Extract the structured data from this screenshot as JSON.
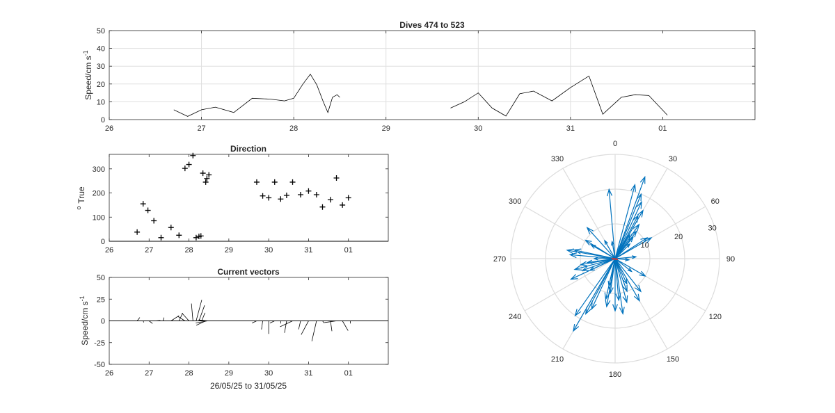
{
  "chart_data": [
    {
      "type": "line",
      "title": "Dives 474 to 523",
      "xlabel": "",
      "ylabel": "Speed/cm s",
      "ylabel_superscript": "-1",
      "xticks": [
        "26",
        "27",
        "28",
        "29",
        "30",
        "31",
        "01"
      ],
      "yticks": [
        "0",
        "10",
        "20",
        "30",
        "40",
        "50"
      ],
      "xlim": [
        26,
        33
      ],
      "ylim": [
        0,
        50
      ],
      "grid": true,
      "series": [
        {
          "segments": [
            {
              "x": [
                26.7,
                26.85,
                27.0,
                27.15,
                27.35,
                27.55,
                27.75,
                27.9,
                28.0,
                28.1,
                28.18,
                28.25,
                28.32,
                28.37,
                28.42,
                28.47,
                28.5
              ],
              "y": [
                5.5,
                1.8,
                5.5,
                7,
                4,
                12,
                11.5,
                10.5,
                12,
                20,
                25.5,
                19.5,
                10,
                4,
                12.5,
                14,
                12.5
              ]
            },
            {
              "x": [
                29.7,
                29.85,
                30.0,
                30.15,
                30.3,
                30.45,
                30.6,
                30.8,
                31.0,
                31.2,
                31.35,
                31.55,
                31.7,
                31.85,
                32.05
              ],
              "y": [
                6.5,
                10,
                15,
                6.5,
                2,
                14.5,
                16,
                10.5,
                18,
                24.5,
                3,
                12.5,
                14,
                13.5,
                2.5
              ]
            }
          ]
        }
      ]
    },
    {
      "type": "scatter",
      "title": "Direction",
      "xlabel": "",
      "ylabel": "True",
      "ylabel_prefix": "o",
      "xticks": [
        "26",
        "27",
        "28",
        "29",
        "30",
        "31",
        "01"
      ],
      "yticks": [
        "0",
        "100",
        "200",
        "300"
      ],
      "xlim": [
        26,
        33
      ],
      "ylim": [
        0,
        360
      ],
      "marker": "+",
      "x": [
        26.7,
        26.85,
        26.97,
        27.12,
        27.3,
        27.55,
        27.75,
        27.9,
        28.0,
        28.1,
        28.18,
        28.25,
        28.3,
        28.35,
        28.42,
        28.45,
        28.5,
        29.7,
        29.85,
        30.0,
        30.15,
        30.3,
        30.45,
        30.6,
        30.8,
        31.0,
        31.2,
        31.35,
        31.55,
        31.7,
        31.85,
        32.0
      ],
      "y": [
        38,
        155,
        128,
        85,
        15,
        57,
        25,
        302,
        318,
        355,
        15,
        20,
        22,
        282,
        245,
        260,
        275,
        245,
        188,
        180,
        245,
        175,
        190,
        245,
        193,
        208,
        193,
        142,
        172,
        262,
        150,
        180
      ]
    },
    {
      "type": "quiver",
      "title": "Current vectors",
      "xlabel": "26/05/25 to 31/05/25",
      "ylabel": "Speed/cm s",
      "ylabel_superscript": "-1",
      "xticks": [
        "26",
        "27",
        "28",
        "29",
        "30",
        "31",
        "01"
      ],
      "yticks": [
        "-50",
        "-25",
        "0",
        "25",
        "50"
      ],
      "xlim": [
        26,
        33
      ],
      "ylim": [
        -50,
        50
      ],
      "x": [
        26.7,
        26.85,
        27.0,
        27.15,
        27.35,
        27.55,
        27.75,
        27.9,
        28.0,
        28.1,
        28.18,
        28.25,
        28.32,
        28.37,
        28.42,
        28.47,
        28.5,
        29.7,
        29.85,
        30.0,
        30.15,
        30.3,
        30.45,
        30.6,
        30.8,
        31.0,
        31.2,
        31.35,
        31.55,
        31.7,
        31.85,
        32.05
      ],
      "speed": [
        5,
        2,
        5,
        6,
        4,
        11,
        10,
        10,
        12,
        20,
        25,
        19,
        10,
        5,
        12,
        14,
        12,
        6,
        10,
        15,
        6,
        3,
        14,
        16,
        10,
        18,
        24,
        3,
        12,
        14,
        13,
        3
      ],
      "direction": [
        38,
        155,
        128,
        85,
        15,
        57,
        25,
        302,
        318,
        355,
        15,
        20,
        22,
        282,
        245,
        260,
        275,
        245,
        188,
        180,
        245,
        175,
        190,
        245,
        193,
        208,
        193,
        142,
        172,
        262,
        150,
        180
      ]
    },
    {
      "type": "compass",
      "title": "",
      "angle_ticks": [
        "0",
        "30",
        "60",
        "90",
        "120",
        "150",
        "180",
        "210",
        "240",
        "270",
        "300",
        "330"
      ],
      "radial_ticks": [
        "10",
        "20",
        "30"
      ],
      "rmax": 30,
      "arrow_color": "#0072bd",
      "origin_color": "#d9312b",
      "directions": [
        15,
        20,
        22,
        25,
        28,
        30,
        32,
        35,
        38,
        40,
        45,
        57,
        60,
        85,
        95,
        120,
        128,
        142,
        150,
        155,
        160,
        165,
        172,
        175,
        180,
        188,
        190,
        193,
        193,
        205,
        208,
        210,
        215,
        245,
        245,
        250,
        255,
        260,
        262,
        270,
        275,
        280,
        282,
        300,
        302,
        318,
        330,
        350,
        355
      ],
      "speeds": [
        22,
        25,
        20,
        18,
        14,
        16,
        8,
        12,
        10,
        8,
        6,
        11,
        12,
        6,
        4,
        10,
        6,
        12,
        14,
        8,
        10,
        13,
        16,
        12,
        15,
        10,
        14,
        12,
        8,
        16,
        18,
        24,
        20,
        14,
        8,
        10,
        12,
        10,
        8,
        6,
        13,
        14,
        12,
        8,
        10,
        12,
        6,
        5,
        20
      ]
    }
  ]
}
